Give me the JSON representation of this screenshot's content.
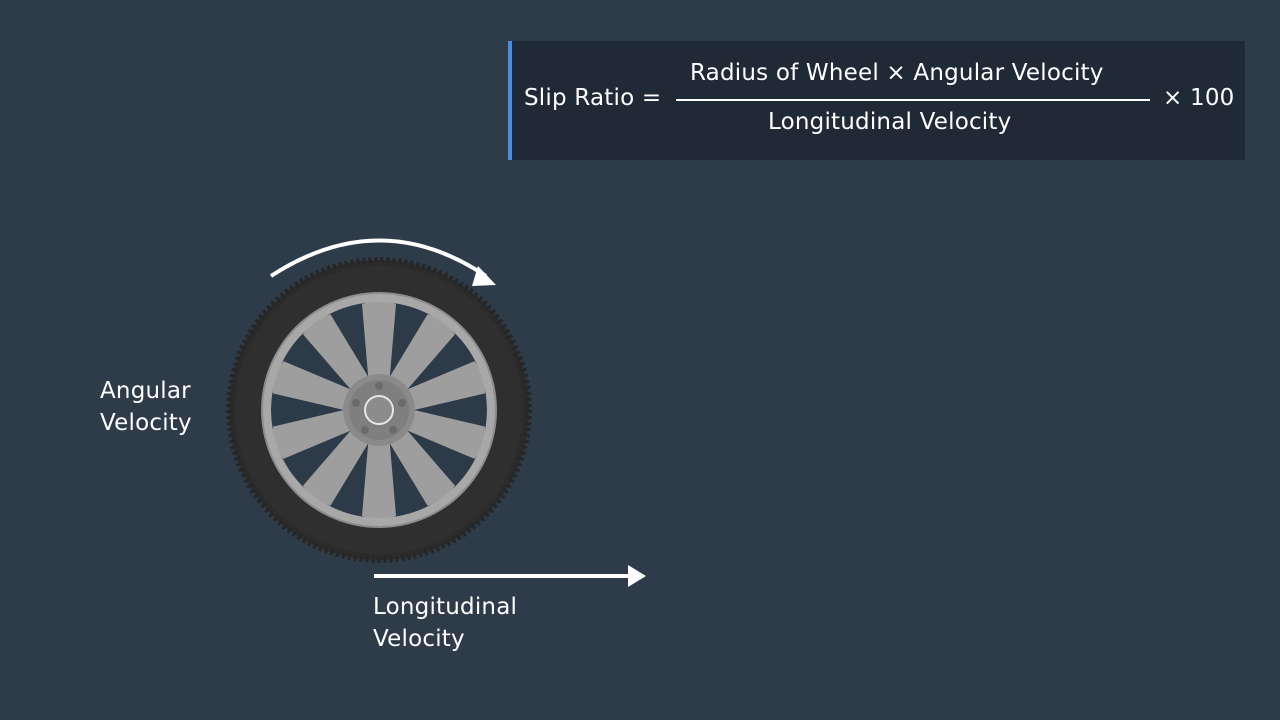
{
  "formula": {
    "lhs": "Slip Ratio =",
    "numerator": "Radius of Wheel  × Angular Velocity",
    "denominator": "Longitudinal Velocity",
    "multiplier": "× 100"
  },
  "labels": {
    "angular": [
      "Angular",
      "Velocity"
    ],
    "longitudinal": [
      "Longitudinal",
      "Velocity"
    ]
  },
  "colors": {
    "background": "#2e3b49",
    "formula_box": "#1f2a36",
    "accent_bar": "#4a90e2",
    "tire": "#2a2a2a",
    "rim": "#9e9e9e",
    "text": "#ffffff"
  },
  "icons": {
    "wheel": "wheel-icon",
    "rotation_arrow": "curved-arrow-icon",
    "motion_arrow": "right-arrow-icon"
  }
}
